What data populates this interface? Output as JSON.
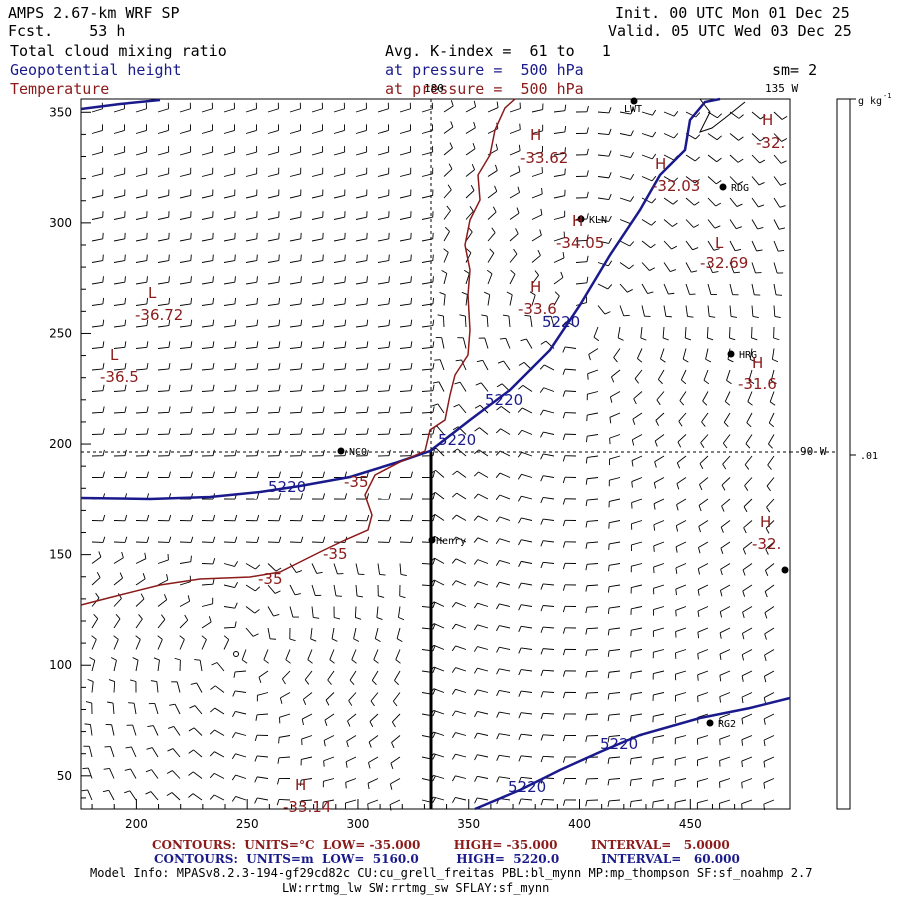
{
  "header": {
    "model": "AMPS 2.67-km WRF SP",
    "fcst_label": "Fcst.",
    "fcst_value": "53 h",
    "init_label": "Init.",
    "init_value": "00 UTC Mon 01 Dec 25",
    "valid_label": "Valid.",
    "valid_value": "05 UTC Wed 03 Dec 25",
    "field1": "Total cloud mixing ratio",
    "field2": "Geopotential height",
    "field3": "Temperature",
    "avg_line": "Avg. K-index =  61 to   1",
    "pressure_line1": "at pressure =  500 hPa",
    "pressure_line2": "at pressure =  500 hPa",
    "smooth": "sm= 2"
  },
  "colors": {
    "height_contour": "#1a1a8c",
    "temperature_contour": "#8b1a1a",
    "wind_barb": "#000000",
    "background": "#ffffff"
  },
  "map": {
    "x_ticks": [
      "200",
      "250",
      "300",
      "350",
      "400",
      "450"
    ],
    "y_ticks": [
      "50",
      "100",
      "150",
      "200",
      "250",
      "300",
      "350"
    ],
    "longitude_labels": {
      "top_left": "180",
      "top_right": "135 W",
      "right": "90 W"
    },
    "colorbar_units": "g kg",
    "colorbar_units_sup": "-1",
    "colorbar_tick": ".01",
    "stations": [
      "LWT",
      "RDG",
      "KLN",
      "HRG",
      "NCO",
      "Henry",
      "RG2"
    ],
    "height_labels": [
      "5220",
      "5220",
      "5220",
      "5220",
      "5220",
      "5220"
    ],
    "temperature_labels": [
      "-35",
      "-35",
      "-35"
    ],
    "extrema": [
      {
        "type": "H",
        "value": "-33.62",
        "color": "red"
      },
      {
        "type": "H",
        "value": "-32.03",
        "color": "red"
      },
      {
        "type": "H",
        "value": "-34.05",
        "color": "red"
      },
      {
        "type": "L",
        "value": "-32.69",
        "color": "red"
      },
      {
        "type": "H",
        "value": "-33.6",
        "color": "red"
      },
      {
        "type": "L",
        "value": "-36.72",
        "color": "red"
      },
      {
        "type": "L",
        "value": "-36.5",
        "color": "red"
      },
      {
        "type": "H",
        "value": "-31.6",
        "color": "red"
      },
      {
        "type": "H",
        "value": "-32.",
        "color": "red"
      },
      {
        "type": "H",
        "value": "-32.",
        "color": "red"
      },
      {
        "type": "H",
        "value": "-33.14",
        "color": "red"
      }
    ]
  },
  "footer": {
    "contours1": "CONTOURS:  UNITS=°C  LOW= -35.000        HIGH= -35.000        INTERVAL=   5.0000",
    "contours2": "CONTOURS:  UNITS=m  LOW=  5160.0         HIGH=  5220.0          INTERVAL=   60.000",
    "model_info": "Model Info: MPASv8.2.3-194-gf29cd82c CU:cu_grell_freitas PBL:bl_mynn MP:mp_thompson SF:sf_noahmp 2.7",
    "model_info2": "LW:rrtmg_lw SW:rrtmg_sw SFLAY:sf_mynn"
  }
}
